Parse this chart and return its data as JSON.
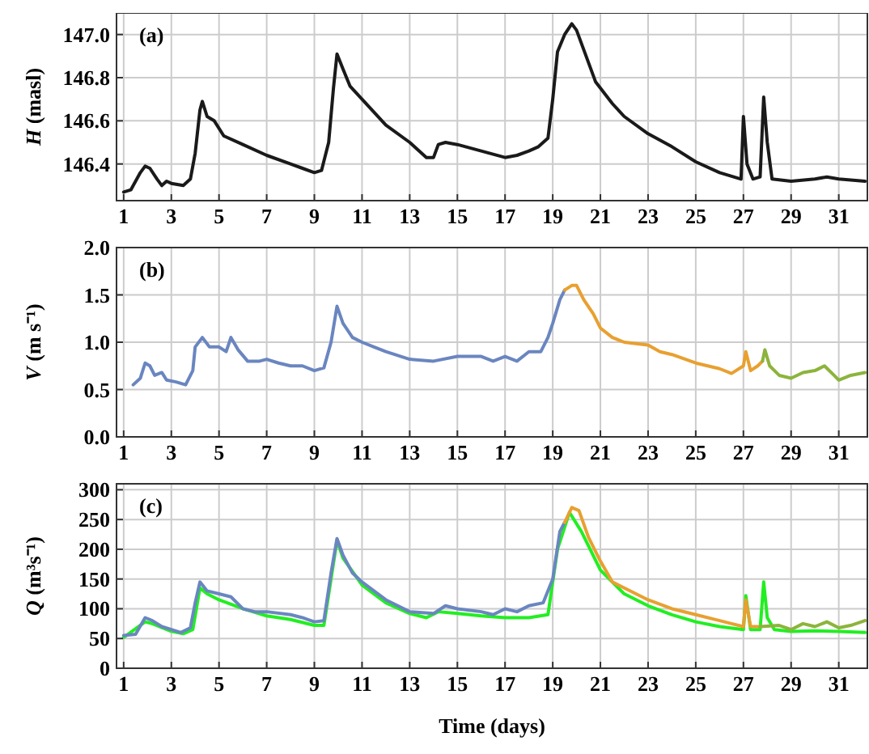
{
  "chart_data": [
    {
      "type": "line",
      "ylabel": "H (masl)",
      "annotations": [
        "(a)"
      ],
      "xlim": [
        0.7,
        32.2
      ],
      "xticks": [
        1,
        3,
        5,
        7,
        9,
        11,
        13,
        15,
        17,
        19,
        21,
        23,
        25,
        27,
        29,
        31
      ],
      "ylim": [
        146.23,
        147.1
      ],
      "yticks": [
        {
          "value": 146.4,
          "label": "146.4"
        },
        {
          "value": 146.6,
          "label": "146.6"
        },
        {
          "value": 146.8,
          "label": "146.8"
        },
        {
          "value": 147.0,
          "label": "147.0"
        }
      ],
      "grid": true,
      "series": [
        {
          "color": "#1a1a1a",
          "x": [
            1.0,
            1.3,
            1.7,
            1.9,
            2.1,
            2.4,
            2.6,
            2.8,
            3.0,
            3.5,
            3.8,
            4.0,
            4.2,
            4.3,
            4.5,
            4.8,
            5.2,
            6,
            7,
            8,
            8.5,
            9,
            9.3,
            9.6,
            9.8,
            9.95,
            10.2,
            10.5,
            11,
            12,
            13,
            13.7,
            14,
            14.2,
            14.5,
            15,
            16,
            17,
            17.5,
            18,
            18.4,
            18.8,
            19.0,
            19.2,
            19.5,
            19.8,
            20.0,
            20.4,
            20.8,
            21.5,
            22,
            23,
            24,
            25,
            26,
            26.9,
            27.0,
            27.15,
            27.4,
            27.7,
            27.85,
            28.0,
            28.2,
            29,
            30,
            30.5,
            31,
            32.1
          ],
          "values": [
            146.27,
            146.28,
            146.36,
            146.39,
            146.38,
            146.33,
            146.3,
            146.32,
            146.31,
            146.3,
            146.33,
            146.45,
            146.65,
            146.69,
            146.62,
            146.6,
            146.53,
            146.49,
            146.44,
            146.4,
            146.38,
            146.36,
            146.37,
            146.5,
            146.75,
            146.91,
            146.84,
            146.76,
            146.7,
            146.58,
            146.5,
            146.43,
            146.43,
            146.49,
            146.5,
            146.49,
            146.46,
            146.43,
            146.44,
            146.46,
            146.48,
            146.52,
            146.7,
            146.92,
            147.0,
            147.05,
            147.02,
            146.9,
            146.78,
            146.68,
            146.62,
            146.54,
            146.48,
            146.41,
            146.36,
            146.33,
            146.62,
            146.4,
            146.33,
            146.34,
            146.71,
            146.5,
            146.33,
            146.32,
            146.33,
            146.34,
            146.33,
            146.32
          ]
        }
      ]
    },
    {
      "type": "line",
      "ylabel": "V (m s⁻¹)",
      "annotations": [
        "(b)"
      ],
      "xlim": [
        0.7,
        32.2
      ],
      "xticks": [
        1,
        3,
        5,
        7,
        9,
        11,
        13,
        15,
        17,
        19,
        21,
        23,
        25,
        27,
        29,
        31
      ],
      "ylim": [
        0,
        2.0
      ],
      "yticks": [
        {
          "value": 0,
          "label": "0.0"
        },
        {
          "value": 0.5,
          "label": "0.5"
        },
        {
          "value": 1,
          "label": "1.0"
        },
        {
          "value": 1.5,
          "label": "1.5"
        },
        {
          "value": 2,
          "label": "2.0"
        }
      ],
      "grid": true,
      "series": [
        {
          "color": "#6a86c0",
          "x": [
            1.4,
            1.7,
            1.9,
            2.1,
            2.3,
            2.6,
            2.8,
            3.2,
            3.6,
            3.9,
            4.0,
            4.3,
            4.6,
            5.0,
            5.3,
            5.5,
            5.8,
            6.2,
            6.7,
            7,
            7.5,
            8,
            8.5,
            9,
            9.4,
            9.7,
            9.95,
            10.2,
            10.6,
            11,
            11.5,
            12,
            13,
            14,
            15,
            16,
            16.5,
            17,
            17.5,
            18,
            18.5,
            18.8,
            19.0,
            19.3,
            19.5
          ],
          "values": [
            0.55,
            0.62,
            0.78,
            0.75,
            0.65,
            0.68,
            0.6,
            0.58,
            0.55,
            0.7,
            0.95,
            1.05,
            0.95,
            0.95,
            0.9,
            1.05,
            0.92,
            0.8,
            0.8,
            0.82,
            0.78,
            0.75,
            0.75,
            0.7,
            0.73,
            1.0,
            1.38,
            1.2,
            1.05,
            1.0,
            0.95,
            0.9,
            0.82,
            0.8,
            0.85,
            0.85,
            0.8,
            0.85,
            0.8,
            0.9,
            0.9,
            1.05,
            1.2,
            1.45,
            1.55
          ]
        },
        {
          "color": "#e8a030",
          "x": [
            19.5,
            19.8,
            20.0,
            20.3,
            20.7,
            21,
            21.5,
            22,
            23,
            23.5,
            24,
            25,
            26,
            26.5,
            27,
            27.1,
            27.3,
            27.6,
            27.8
          ],
          "values": [
            1.55,
            1.6,
            1.6,
            1.45,
            1.3,
            1.15,
            1.05,
            1.0,
            0.97,
            0.9,
            0.87,
            0.78,
            0.72,
            0.67,
            0.75,
            0.9,
            0.7,
            0.75,
            0.8
          ]
        },
        {
          "color": "#8cb43c",
          "x": [
            27.8,
            27.9,
            28.1,
            28.5,
            29,
            29.5,
            30,
            30.4,
            30.8,
            31,
            31.5,
            32.1
          ],
          "values": [
            0.8,
            0.92,
            0.75,
            0.65,
            0.62,
            0.68,
            0.7,
            0.75,
            0.65,
            0.6,
            0.65,
            0.68
          ]
        }
      ]
    },
    {
      "type": "line",
      "xlabel": "Time (days)",
      "ylabel": "Q (m³s⁻¹)",
      "annotations": [
        "(c)"
      ],
      "xlim": [
        0.7,
        32.2
      ],
      "xticks": [
        1,
        3,
        5,
        7,
        9,
        11,
        13,
        15,
        17,
        19,
        21,
        23,
        25,
        27,
        29,
        31
      ],
      "ylim": [
        0,
        310
      ],
      "yticks": [
        0,
        50,
        100,
        150,
        200,
        250,
        300
      ],
      "grid": true,
      "series": [
        {
          "color": "#22ee22",
          "x": [
            1.0,
            1.9,
            2.2,
            3,
            3.5,
            3.9,
            4.2,
            4.5,
            5,
            6,
            7,
            8,
            9,
            9.4,
            9.7,
            9.95,
            10.2,
            11,
            12,
            13,
            13.7,
            14.2,
            15,
            16,
            17,
            18,
            18.8,
            19.2,
            19.7,
            20.2,
            21,
            22,
            23,
            24,
            25,
            26,
            27.0,
            27.1,
            27.3,
            27.7,
            27.85,
            28.0,
            28.3,
            29,
            30,
            31,
            32.1
          ],
          "values": [
            52,
            78,
            75,
            62,
            58,
            65,
            135,
            125,
            115,
            100,
            88,
            82,
            72,
            72,
            150,
            215,
            185,
            140,
            110,
            92,
            85,
            95,
            92,
            88,
            85,
            85,
            90,
            200,
            262,
            230,
            165,
            125,
            105,
            90,
            78,
            70,
            65,
            122,
            65,
            65,
            145,
            85,
            65,
            62,
            63,
            62,
            60
          ]
        },
        {
          "color": "#6a86c0",
          "x": [
            1.0,
            1.5,
            1.9,
            2.2,
            2.6,
            3.0,
            3.4,
            3.8,
            4.0,
            4.2,
            4.5,
            5.0,
            5.5,
            6,
            6.5,
            7,
            8,
            8.5,
            9,
            9.4,
            9.7,
            9.95,
            10.2,
            10.6,
            11,
            12,
            13,
            14,
            14.5,
            15,
            16,
            16.5,
            17,
            17.5,
            18,
            18.6,
            19,
            19.3,
            19.5
          ],
          "values": [
            55,
            57,
            85,
            80,
            70,
            65,
            60,
            68,
            110,
            145,
            130,
            125,
            120,
            100,
            95,
            95,
            90,
            85,
            78,
            80,
            160,
            218,
            190,
            160,
            145,
            115,
            95,
            92,
            105,
            100,
            95,
            90,
            100,
            95,
            105,
            110,
            150,
            230,
            245
          ]
        },
        {
          "color": "#e8a030",
          "x": [
            19.5,
            19.8,
            20.1,
            20.5,
            21,
            21.5,
            22,
            23,
            24,
            25,
            26,
            26.5,
            27,
            27.1,
            27.3,
            27.7
          ],
          "values": [
            245,
            270,
            265,
            220,
            180,
            145,
            135,
            115,
            100,
            90,
            80,
            75,
            70,
            115,
            70,
            70
          ]
        },
        {
          "color": "#8cb43c",
          "x": [
            27.7,
            28.5,
            29,
            29.5,
            30,
            30.5,
            31,
            31.5,
            32.1
          ],
          "values": [
            70,
            72,
            65,
            75,
            70,
            78,
            68,
            72,
            80
          ]
        }
      ]
    }
  ]
}
